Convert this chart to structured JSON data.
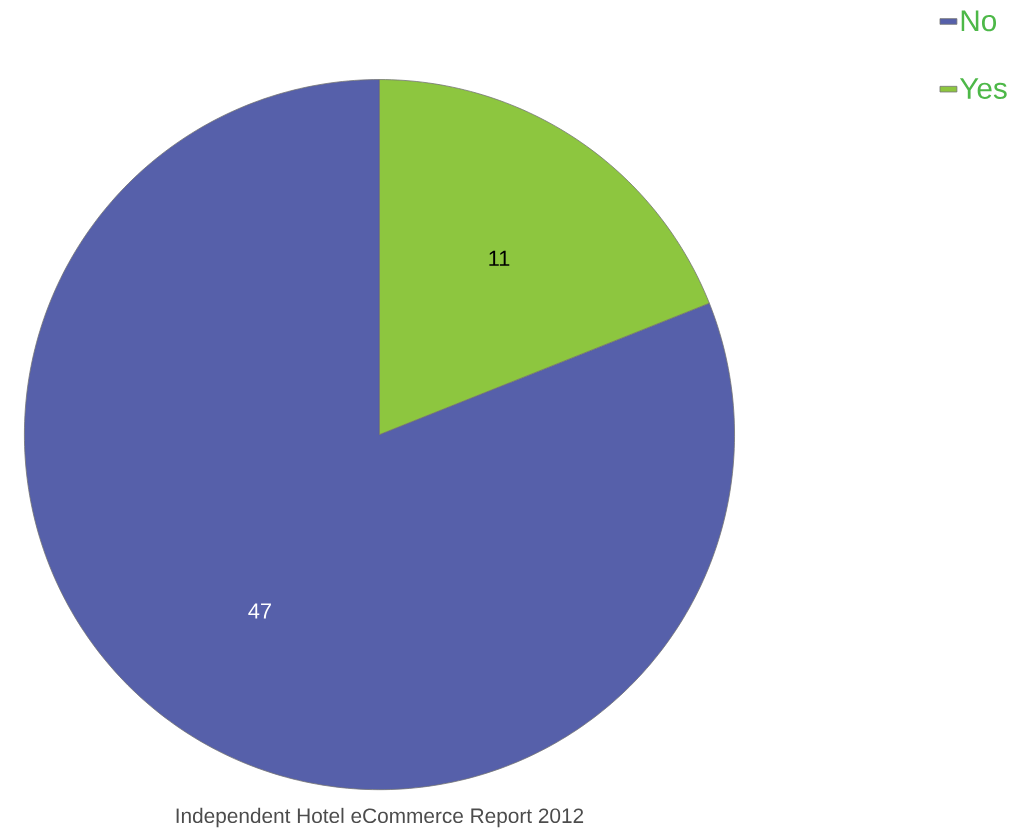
{
  "chart_data": {
    "type": "pie",
    "categories": [
      "No",
      "Yes"
    ],
    "values": [
      47,
      11
    ],
    "colors": [
      "#5660aa",
      "#8dc63f"
    ],
    "data_labels": true,
    "legend": "top right",
    "annotations": [
      "Independent Hotel eCommerce Report 2012"
    ]
  }
}
